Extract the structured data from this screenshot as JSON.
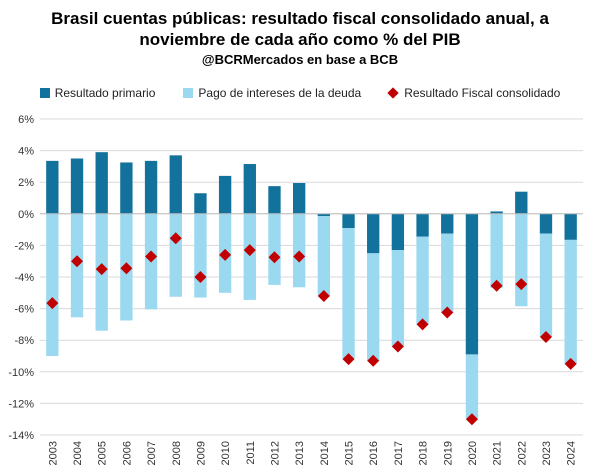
{
  "title": {
    "line1": "Brasil cuentas públicas: resultado fiscal consolidado anual, a",
    "line2": "noviembre de cada año como % del PIB",
    "subtitle": "@BCRMercados en base a BCB"
  },
  "colors": {
    "primario": "#12729b",
    "intereses": "#9ad9f0",
    "consolidado": "#c00000",
    "grid": "#d9d9d9"
  },
  "chart_data": {
    "type": "bar",
    "stacked": true,
    "categories": [
      "2003",
      "2004",
      "2005",
      "2006",
      "2007",
      "2008",
      "2009",
      "2010",
      "2011",
      "2012",
      "2013",
      "2014",
      "2015",
      "2016",
      "2017",
      "2018",
      "2019",
      "2020",
      "2021",
      "2022",
      "2023",
      "2024"
    ],
    "series": [
      {
        "name": "Resultado primario",
        "type": "bar",
        "values": [
          3.35,
          3.5,
          3.9,
          3.25,
          3.35,
          3.7,
          1.3,
          2.4,
          3.15,
          1.75,
          1.95,
          -0.15,
          -0.9,
          -2.5,
          -2.3,
          -1.45,
          -1.25,
          -8.9,
          0.15,
          1.4,
          -1.25,
          -1.65
        ]
      },
      {
        "name": "Pago de intereses de la deuda",
        "type": "bar",
        "values": [
          -9.0,
          -6.55,
          -7.4,
          -6.75,
          -6.05,
          -5.25,
          -5.3,
          -5.0,
          -5.45,
          -4.5,
          -4.65,
          -5.05,
          -8.3,
          -6.8,
          -6.1,
          -5.55,
          -5.0,
          -4.1,
          -4.7,
          -5.85,
          -6.55,
          -7.85
        ]
      },
      {
        "name": "Resultado Fiscal consolidado",
        "type": "scatter",
        "values": [
          -5.65,
          -3.0,
          -3.5,
          -3.45,
          -2.7,
          -1.55,
          -4.0,
          -2.6,
          -2.3,
          -2.75,
          -2.7,
          -5.2,
          -9.2,
          -9.3,
          -8.4,
          -7.0,
          -6.25,
          -13.0,
          -4.55,
          -4.45,
          -7.8,
          -9.5
        ]
      }
    ],
    "ylim": [
      -14,
      6
    ],
    "yticks": [
      "6%",
      "4%",
      "2%",
      "0%",
      "-2%",
      "-4%",
      "-6%",
      "-8%",
      "-10%",
      "-12%",
      "-14%"
    ],
    "ytick_values": [
      6,
      4,
      2,
      0,
      -2,
      -4,
      -6,
      -8,
      -10,
      -12,
      -14
    ],
    "grid": true,
    "legend_position": "top"
  }
}
